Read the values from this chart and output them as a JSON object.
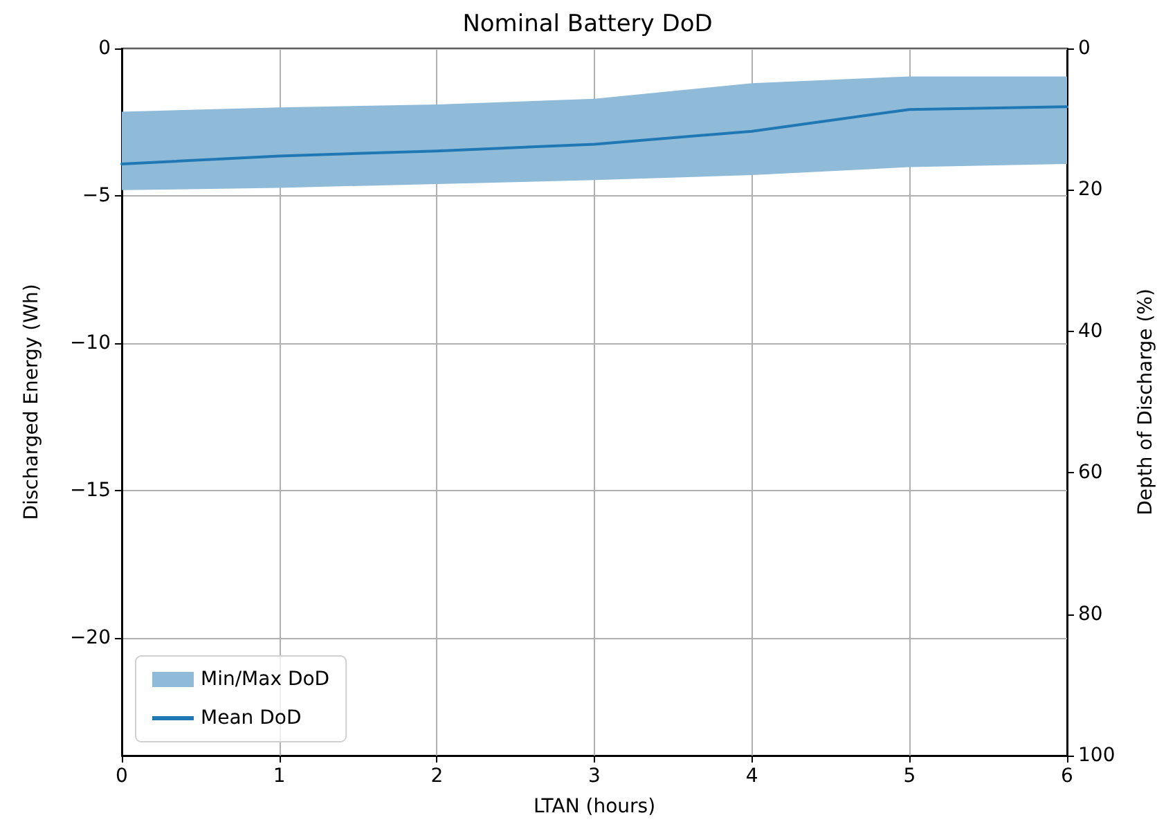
{
  "chart_data": {
    "type": "line",
    "title": "Nominal Battery DoD",
    "xlabel": "LTAN (hours)",
    "ylabel": "Discharged Energy (Wh)",
    "y2label": "Depth of Discharge (%)",
    "x": [
      0,
      1,
      2,
      3,
      4,
      5,
      6
    ],
    "series": [
      {
        "name": "Min/Max DoD",
        "color": "#8fbbd9",
        "values": [
          null,
          null,
          null,
          null,
          null,
          null,
          null
        ],
        "lower": [
          -4.81,
          -4.73,
          -4.6,
          -4.47,
          -4.3,
          -4.03,
          -3.92
        ],
        "upper": [
          -2.15,
          -2.0,
          -1.9,
          -1.71,
          -1.18,
          -0.95,
          -0.95
        ]
      },
      {
        "name": "Mean DoD",
        "color": "#1f77b4",
        "values": [
          -3.92,
          -3.65,
          -3.48,
          -3.25,
          -2.81,
          -2.07,
          -1.98
        ]
      }
    ],
    "xlim": [
      0,
      6
    ],
    "xticks": [
      0,
      1,
      2,
      3,
      4,
      5,
      6
    ],
    "ylim": [
      -24,
      0
    ],
    "yticks": [
      {
        "value": -20,
        "label": "−20"
      },
      {
        "value": -15,
        "label": "−15"
      },
      {
        "value": -10,
        "label": "−10"
      },
      {
        "value": -5,
        "label": "−5"
      },
      0
    ],
    "y2lim": [
      100,
      0
    ],
    "y2ticks": [
      0,
      20,
      40,
      60,
      80,
      100
    ],
    "grid": true,
    "legend": "bottom left",
    "marker": "none",
    "line_style": "solid"
  }
}
